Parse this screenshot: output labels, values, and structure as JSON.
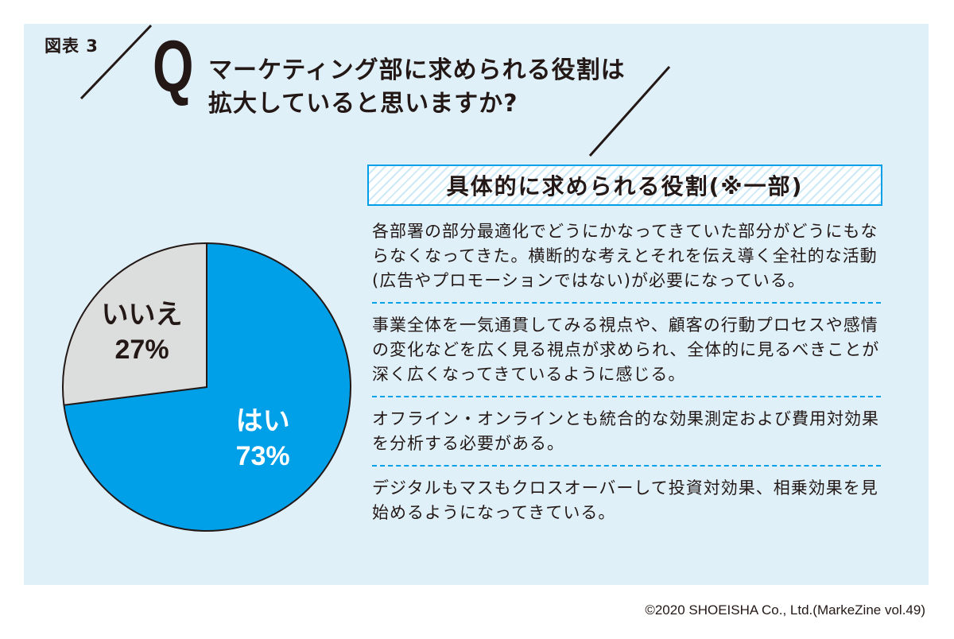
{
  "figure_label": "図表 3",
  "question": {
    "mark": "Q",
    "lines": [
      "マーケティング部に求められる役割は",
      "拡大していると思いますか?"
    ]
  },
  "chart_data": {
    "type": "pie",
    "slices": [
      {
        "label": "はい",
        "value": 73,
        "value_label": "73%",
        "color": "#00a0e9",
        "text_color": "#ffffff"
      },
      {
        "label": "いいえ",
        "value": 27,
        "value_label": "27%",
        "color": "#dcdddd",
        "text_color": "#231815"
      }
    ],
    "start_angle_deg": 0,
    "direction": "clockwise"
  },
  "roles": {
    "heading": "具体的に求められる役割(※一部)",
    "items": [
      "各部署の部分最適化でどうにかなってきていた部分がどうにもならなくなってきた。横断的な考えとそれを伝え導く全社的な活動(広告やプロモーションではない)が必要になっている。",
      "事業全体を一気通貫してみる視点や、顧客の行動プロセスや感情の変化などを広く見る視点が求められ、全体的に見るべきことが深く広くなってきているように感じる。",
      "オフライン・オンラインとも統合的な効果測定および費用対効果を分析する必要がある。",
      "デジタルもマスもクロスオーバーして投資対効果、相乗効果を見始めるようになってきている。"
    ]
  },
  "footer": "©2020 SHOEISHA Co., Ltd.(MarkeZine vol.49)",
  "colors": {
    "background": "#dff0f9",
    "accent": "#00a0e9",
    "text": "#231815"
  }
}
